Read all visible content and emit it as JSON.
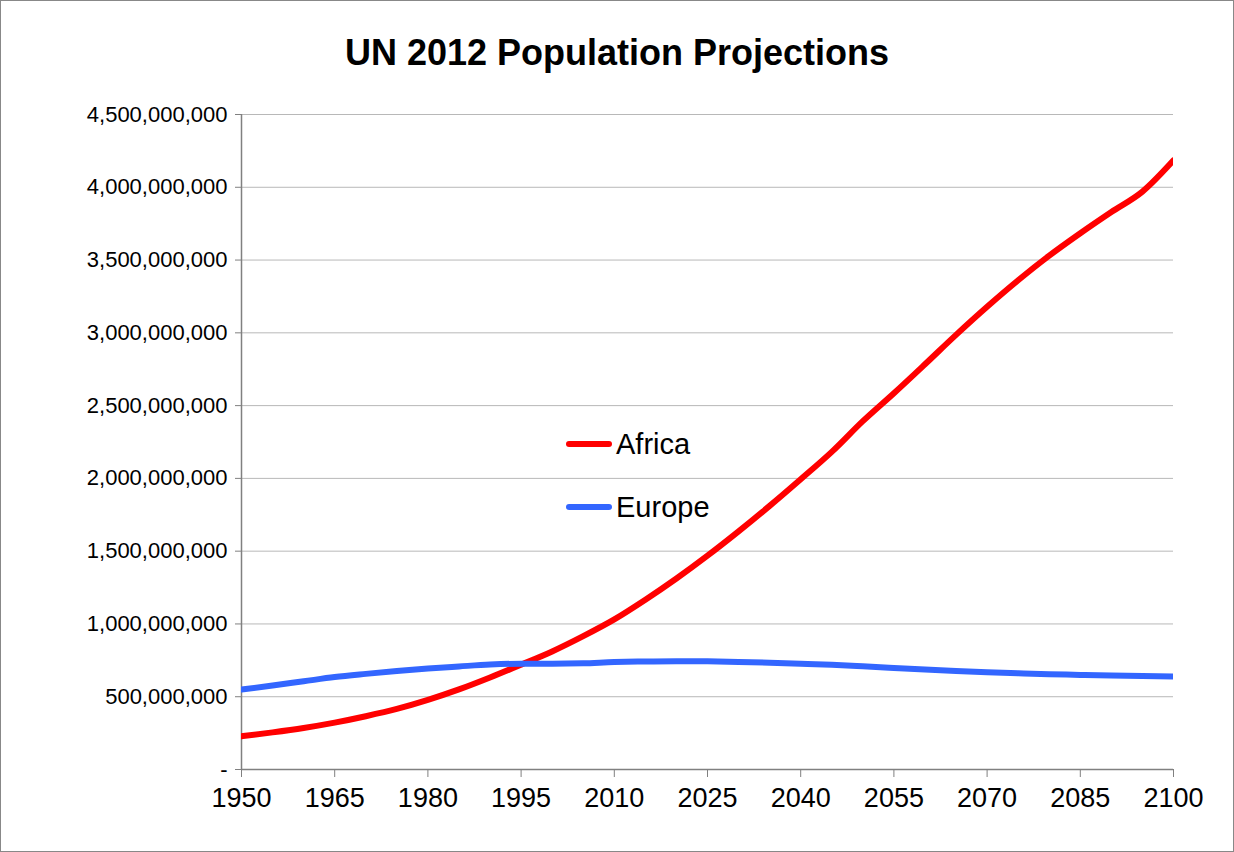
{
  "chart_data": {
    "type": "line",
    "title": "UN 2012 Population Projections",
    "x": [
      1950,
      1955,
      1960,
      1965,
      1970,
      1975,
      1980,
      1985,
      1990,
      1995,
      2000,
      2005,
      2010,
      2015,
      2020,
      2025,
      2030,
      2035,
      2040,
      2045,
      2050,
      2055,
      2060,
      2065,
      2070,
      2075,
      2080,
      2085,
      2090,
      2095,
      2100
    ],
    "series": [
      {
        "name": "Africa",
        "color": "#ff0000",
        "values": [
          229000000,
          255000000,
          285000000,
          322000000,
          366000000,
          416000000,
          478000000,
          550000000,
          632000000,
          720000000,
          811000000,
          916000000,
          1031000000,
          1166000000,
          1312000000,
          1469000000,
          1636000000,
          1811000000,
          1994000000,
          2182000000,
          2393000000,
          2585000000,
          2784000000,
          2986000000,
          3179000000,
          3361000000,
          3530000000,
          3684000000,
          3830000000,
          3970000000,
          4185000000
        ]
      },
      {
        "name": "Europe",
        "color": "#3366ff",
        "values": [
          549000000,
          577000000,
          606000000,
          635000000,
          657000000,
          677000000,
          694000000,
          708000000,
          721000000,
          727000000,
          727000000,
          730000000,
          738000000,
          742000000,
          744000000,
          743000000,
          739000000,
          734000000,
          727000000,
          719000000,
          709000000,
          698000000,
          687000000,
          677000000,
          668000000,
          661000000,
          655000000,
          650000000,
          645000000,
          642000000,
          639000000
        ]
      }
    ],
    "xlim": [
      1950,
      2100
    ],
    "xticks": [
      1950,
      1965,
      1980,
      1995,
      2010,
      2025,
      2040,
      2055,
      2070,
      2085,
      2100
    ],
    "ylim": [
      0,
      4500000000
    ],
    "yticks": [
      {
        "value": 0,
        "label": "-"
      },
      {
        "value": 500000000,
        "label": "500,000,000"
      },
      {
        "value": 1000000000,
        "label": "1,000,000,000"
      },
      {
        "value": 1500000000,
        "label": "1,500,000,000"
      },
      {
        "value": 2000000000,
        "label": "2,000,000,000"
      },
      {
        "value": 2500000000,
        "label": "2,500,000,000"
      },
      {
        "value": 3000000000,
        "label": "3,000,000,000"
      },
      {
        "value": 3500000000,
        "label": "3,500,000,000"
      },
      {
        "value": 4000000000,
        "label": "4,000,000,000"
      },
      {
        "value": 4500000000,
        "label": "4,500,000,000"
      }
    ],
    "grid": true,
    "legend": "center"
  }
}
